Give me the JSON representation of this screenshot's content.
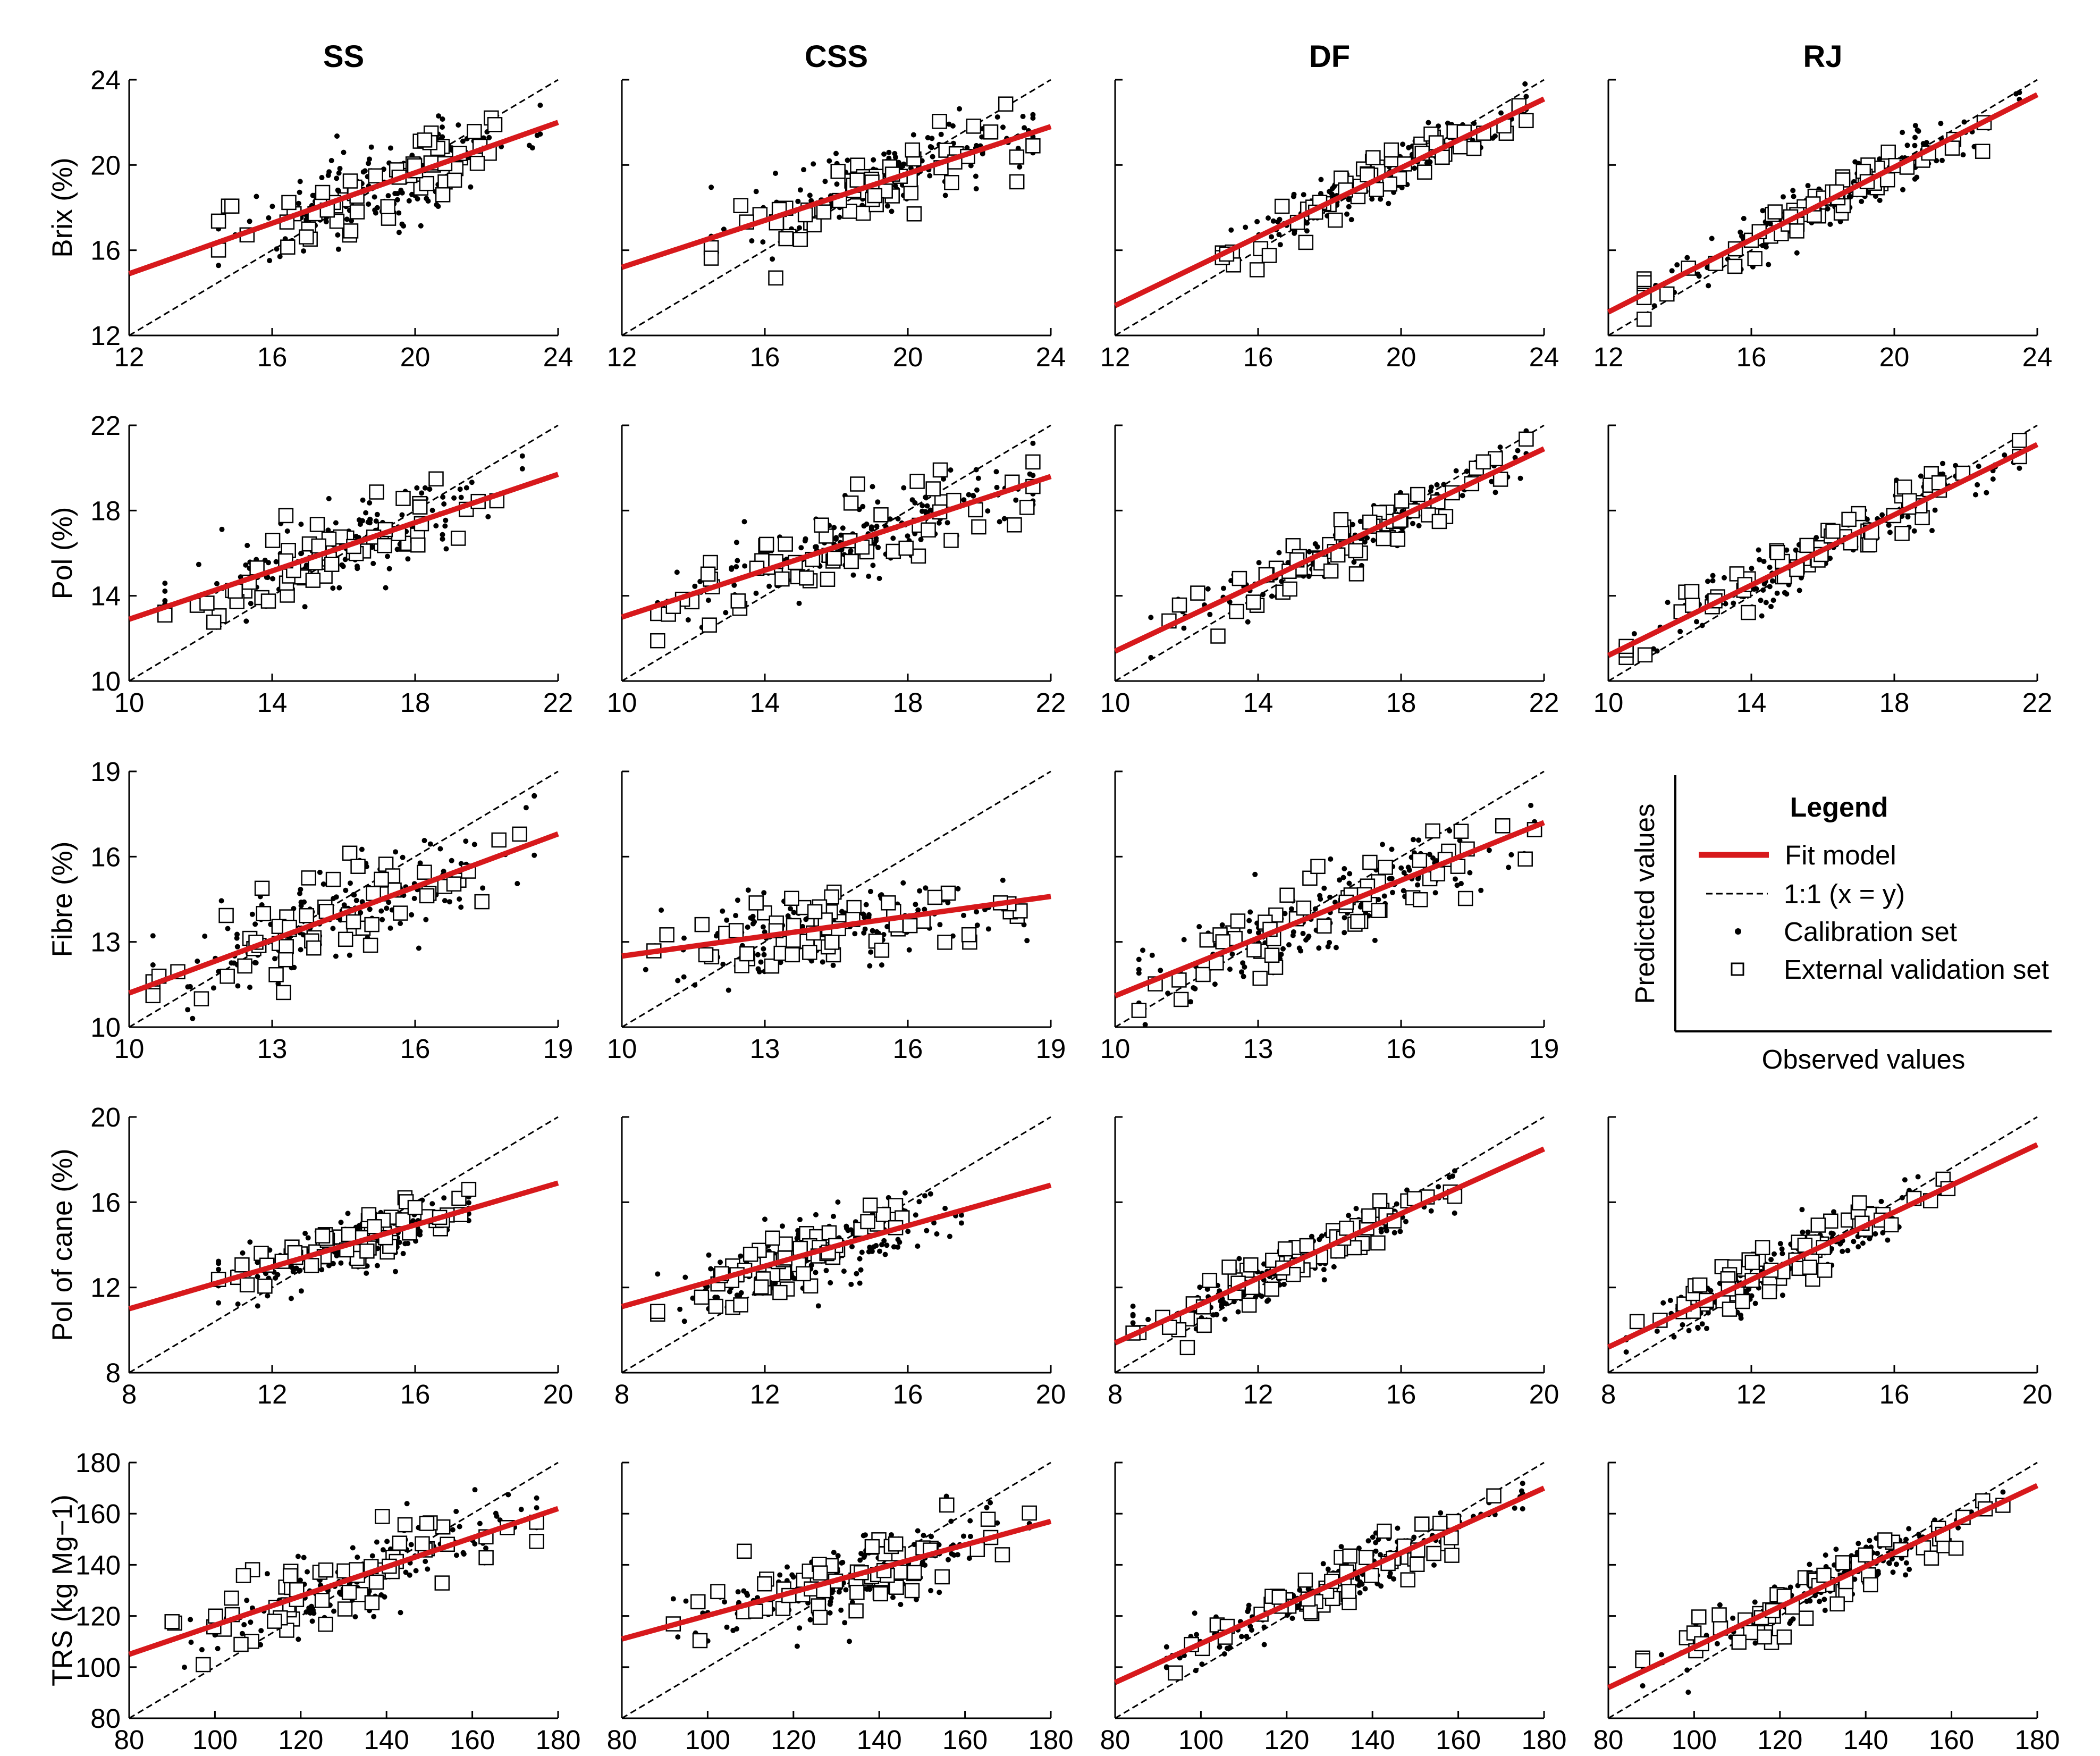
{
  "columns": [
    "SS",
    "CSS",
    "DF",
    "RJ"
  ],
  "rows": [
    {
      "id": "brix",
      "ylabel": "Brix (%)",
      "lim": [
        12,
        24
      ],
      "ticks": [
        12,
        16,
        20,
        24
      ],
      "tick_labels": [
        "12",
        "16",
        "20",
        "24"
      ]
    },
    {
      "id": "pol",
      "ylabel": "Pol (%)",
      "lim": [
        10,
        22
      ],
      "ticks": [
        10,
        14,
        18,
        22
      ],
      "tick_labels": [
        "10",
        "14",
        "18",
        "22"
      ]
    },
    {
      "id": "fibre",
      "ylabel": "Fibre (%)",
      "lim": [
        10,
        19
      ],
      "ticks": [
        10,
        13,
        16,
        19
      ],
      "tick_labels": [
        "10",
        "13",
        "16",
        "19"
      ]
    },
    {
      "id": "polcane",
      "ylabel": "Pol of cane (%)",
      "lim": [
        8,
        20
      ],
      "ticks": [
        8,
        12,
        16,
        20
      ],
      "tick_labels": [
        "8",
        "12",
        "16",
        "20"
      ]
    },
    {
      "id": "trs",
      "ylabel": "TRS (kg Mg−1)",
      "lim": [
        80,
        180
      ],
      "ticks": [
        80,
        100,
        120,
        140,
        160,
        180
      ],
      "tick_labels": [
        "80",
        "100",
        "120",
        "140",
        "160",
        "180"
      ]
    }
  ],
  "legend": {
    "title": "Legend",
    "fit_label": "Fit model",
    "one_to_one_label": "1:1 (x = y)",
    "calibration_label": "Calibration set",
    "validation_label": "External validation set",
    "x_axis_label": "Observed values",
    "y_axis_label": "Predicted values"
  },
  "colors": {
    "fit": "#d7191c",
    "identity": "#000000",
    "points": "#000000"
  },
  "chart_data": {
    "type": "scatter",
    "grid": false,
    "layout": "5 rows x 4 columns of scatter panels (observed vs predicted)",
    "legend_position": "row 3, column 4",
    "series": [
      "Fit model",
      "1:1 (x = y)",
      "Calibration set",
      "External validation set"
    ],
    "panels": [
      {
        "row": "brix",
        "col": "SS",
        "fit": [
          [
            12,
            14.9
          ],
          [
            24,
            22.0
          ]
        ],
        "obs_range": [
          14.5,
          23.5
        ],
        "cal_n": 170,
        "val_n": 60,
        "noise": 1.0
      },
      {
        "row": "brix",
        "col": "CSS",
        "fit": [
          [
            12,
            15.2
          ],
          [
            24,
            21.8
          ]
        ],
        "obs_range": [
          14.5,
          23.5
        ],
        "cal_n": 170,
        "val_n": 60,
        "noise": 0.9
      },
      {
        "row": "brix",
        "col": "DF",
        "fit": [
          [
            12,
            13.4
          ],
          [
            24,
            23.1
          ]
        ],
        "obs_range": [
          15.0,
          23.5
        ],
        "cal_n": 170,
        "val_n": 60,
        "noise": 0.6
      },
      {
        "row": "brix",
        "col": "RJ",
        "fit": [
          [
            12,
            13.1
          ],
          [
            24,
            23.3
          ]
        ],
        "obs_range": [
          13.0,
          23.5
        ],
        "cal_n": 170,
        "val_n": 60,
        "noise": 0.6
      },
      {
        "row": "pol",
        "col": "SS",
        "fit": [
          [
            10,
            12.9
          ],
          [
            22,
            19.7
          ]
        ],
        "obs_range": [
          11.0,
          21.0
        ],
        "cal_n": 170,
        "val_n": 60,
        "noise": 0.9
      },
      {
        "row": "pol",
        "col": "CSS",
        "fit": [
          [
            10,
            13.0
          ],
          [
            22,
            19.6
          ]
        ],
        "obs_range": [
          11.0,
          21.5
        ],
        "cal_n": 170,
        "val_n": 60,
        "noise": 0.9
      },
      {
        "row": "pol",
        "col": "DF",
        "fit": [
          [
            10,
            11.4
          ],
          [
            22,
            20.9
          ]
        ],
        "obs_range": [
          11.0,
          21.5
        ],
        "cal_n": 170,
        "val_n": 60,
        "noise": 0.6
      },
      {
        "row": "pol",
        "col": "RJ",
        "fit": [
          [
            10,
            11.2
          ],
          [
            22,
            21.1
          ]
        ],
        "obs_range": [
          10.5,
          21.5
        ],
        "cal_n": 170,
        "val_n": 60,
        "noise": 0.6
      },
      {
        "row": "fibre",
        "col": "SS",
        "fit": [
          [
            10,
            11.2
          ],
          [
            19,
            16.8
          ]
        ],
        "obs_range": [
          10.5,
          18.5
        ],
        "cal_n": 170,
        "val_n": 60,
        "noise": 0.8
      },
      {
        "row": "fibre",
        "col": "CSS",
        "fit": [
          [
            10,
            12.5
          ],
          [
            19,
            14.6
          ]
        ],
        "obs_range": [
          10.5,
          18.5
        ],
        "cal_n": 170,
        "val_n": 60,
        "noise": 0.7
      },
      {
        "row": "fibre",
        "col": "DF",
        "fit": [
          [
            10,
            11.1
          ],
          [
            19,
            17.2
          ]
        ],
        "obs_range": [
          10.5,
          18.8
        ],
        "cal_n": 170,
        "val_n": 60,
        "noise": 0.7
      },
      {
        "row": "polcane",
        "col": "SS",
        "fit": [
          [
            8,
            11.0
          ],
          [
            20,
            16.9
          ]
        ],
        "obs_range": [
          10.5,
          17.5
        ],
        "cal_n": 170,
        "val_n": 60,
        "noise": 0.7
      },
      {
        "row": "polcane",
        "col": "CSS",
        "fit": [
          [
            8,
            11.1
          ],
          [
            20,
            16.8
          ]
        ],
        "obs_range": [
          9.0,
          17.5
        ],
        "cal_n": 170,
        "val_n": 60,
        "noise": 0.8
      },
      {
        "row": "polcane",
        "col": "DF",
        "fit": [
          [
            8,
            9.4
          ],
          [
            20,
            18.5
          ]
        ],
        "obs_range": [
          8.5,
          17.5
        ],
        "cal_n": 170,
        "val_n": 60,
        "noise": 0.6
      },
      {
        "row": "polcane",
        "col": "RJ",
        "fit": [
          [
            8,
            9.2
          ],
          [
            20,
            18.7
          ]
        ],
        "obs_range": [
          8.5,
          17.5
        ],
        "cal_n": 170,
        "val_n": 60,
        "noise": 0.6
      },
      {
        "row": "trs",
        "col": "SS",
        "fit": [
          [
            80,
            105
          ],
          [
            180,
            162
          ]
        ],
        "obs_range": [
          90,
          175
        ],
        "cal_n": 170,
        "val_n": 60,
        "noise": 7
      },
      {
        "row": "trs",
        "col": "CSS",
        "fit": [
          [
            80,
            111
          ],
          [
            180,
            157
          ]
        ],
        "obs_range": [
          92,
          175
        ],
        "cal_n": 170,
        "val_n": 60,
        "noise": 7
      },
      {
        "row": "trs",
        "col": "DF",
        "fit": [
          [
            80,
            94
          ],
          [
            180,
            170
          ]
        ],
        "obs_range": [
          92,
          175
        ],
        "cal_n": 170,
        "val_n": 60,
        "noise": 5
      },
      {
        "row": "trs",
        "col": "RJ",
        "fit": [
          [
            80,
            92
          ],
          [
            180,
            171
          ]
        ],
        "obs_range": [
          88,
          172
        ],
        "cal_n": 170,
        "val_n": 60,
        "noise": 5
      }
    ]
  }
}
